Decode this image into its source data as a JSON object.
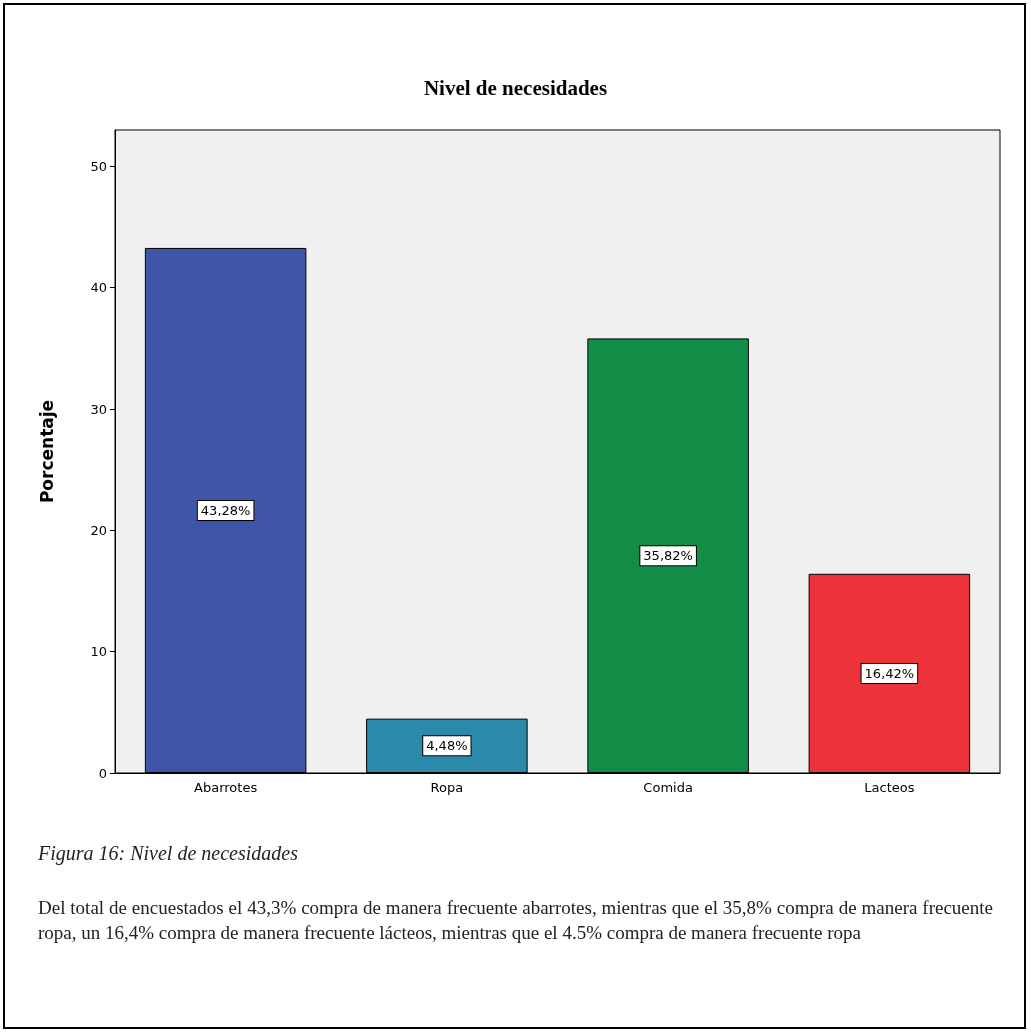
{
  "chart_data": {
    "type": "bar",
    "title": "Nivel de necesidades",
    "ylabel": "Porcentaje",
    "categories": [
      "Abarrotes",
      "Ropa",
      "Comida",
      "Lacteos"
    ],
    "values": [
      43.28,
      4.48,
      35.82,
      16.42
    ],
    "colors": [
      "#3f56a8",
      "#2b8aaa",
      "#138d48",
      "#ee323a"
    ],
    "value_labels": [
      "43,28%",
      "4,48%",
      "35,82%",
      "16,42%"
    ],
    "ylim": [
      0,
      53
    ],
    "yticks": [
      0,
      10,
      20,
      30,
      40,
      50
    ],
    "grid": false,
    "annotations": [
      "Figura 16: Nivel de necesidades",
      "Del total de encuestados el 43,3% compra de manera frecuente abarrotes, mientras que el 35,8% compra de manera frecuente ropa, un 16,4% compra de manera frecuente lácteos, mientras que el 4.5% compra de manera frecuente ropa"
    ]
  }
}
